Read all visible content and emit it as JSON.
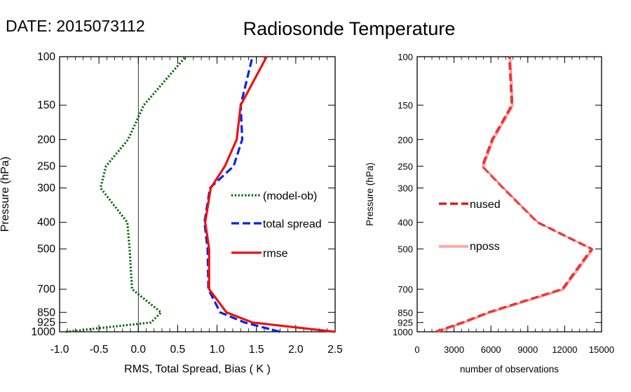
{
  "header": {
    "date_label": "DATE: 2015073112",
    "title": "Radiosonde Temperature"
  },
  "chart_data": [
    {
      "type": "line",
      "xlabel": "RMS, Total Spread, Bias ( K )",
      "ylabel": "Pressure (hPa)",
      "xlim": [
        -1.0,
        2.5
      ],
      "ylim": [
        1000,
        100
      ],
      "y_scale": "log",
      "x_ticks": [
        "-1.0",
        "-0.5",
        "0.0",
        "0.5",
        "1.0",
        "1.5",
        "2.0",
        "2.5"
      ],
      "y_ticks": [
        "100",
        "150",
        "200",
        "250",
        "300",
        "400",
        "500",
        "700",
        "850",
        "925",
        "1000"
      ],
      "zero_line": true,
      "legend_position": "right-center",
      "series": [
        {
          "name": "(model-ob)",
          "style": "dotted",
          "color": "#006400",
          "points": [
            [
              -0.92,
              1000
            ],
            [
              0.16,
              925
            ],
            [
              0.29,
              850
            ],
            [
              -0.08,
              700
            ],
            [
              -0.11,
              500
            ],
            [
              -0.14,
              400
            ],
            [
              -0.48,
              300
            ],
            [
              -0.41,
              250
            ],
            [
              -0.13,
              200
            ],
            [
              0.07,
              150
            ],
            [
              0.6,
              100
            ]
          ]
        },
        {
          "name": "total spread",
          "style": "dashed",
          "color": "#0022ee",
          "points": [
            [
              1.8,
              1000
            ],
            [
              1.35,
              925
            ],
            [
              1.04,
              850
            ],
            [
              0.89,
              700
            ],
            [
              0.88,
              500
            ],
            [
              0.84,
              400
            ],
            [
              0.91,
              300
            ],
            [
              1.21,
              250
            ],
            [
              1.32,
              200
            ],
            [
              1.3,
              150
            ],
            [
              1.45,
              100
            ]
          ]
        },
        {
          "name": "rmse",
          "style": "solid",
          "color": "#ee1111",
          "points": [
            [
              2.5,
              1000
            ],
            [
              1.45,
              925
            ],
            [
              1.12,
              850
            ],
            [
              0.9,
              700
            ],
            [
              0.9,
              500
            ],
            [
              0.85,
              400
            ],
            [
              0.92,
              300
            ],
            [
              1.1,
              250
            ],
            [
              1.25,
              200
            ],
            [
              1.3,
              150
            ],
            [
              1.63,
              100
            ]
          ]
        }
      ]
    },
    {
      "type": "line",
      "xlabel": "number of observations",
      "ylabel": "Pressure (hPa)",
      "xlim": [
        0,
        15000
      ],
      "ylim": [
        1000,
        100
      ],
      "y_scale": "log",
      "x_ticks": [
        "0",
        "3000",
        "6000",
        "9000",
        "12000",
        "15000"
      ],
      "y_ticks": [
        "100",
        "150",
        "200",
        "250",
        "300",
        "400",
        "500",
        "700",
        "850",
        "925",
        "1000"
      ],
      "legend_position": "left-center",
      "series": [
        {
          "name": "nused",
          "style": "dashed",
          "color": "#dd1111",
          "points": [
            [
              1500,
              1000
            ],
            [
              3700,
              925
            ],
            [
              5800,
              850
            ],
            [
              11800,
              700
            ],
            [
              14200,
              500
            ],
            [
              9800,
              400
            ],
            [
              7000,
              300
            ],
            [
              5300,
              250
            ],
            [
              6100,
              200
            ],
            [
              7700,
              150
            ],
            [
              7500,
              100
            ]
          ]
        },
        {
          "name": "nposs",
          "style": "double-thin",
          "color": "#ff5555",
          "points": [
            [
              1500,
              1000
            ],
            [
              3700,
              925
            ],
            [
              5800,
              850
            ],
            [
              11800,
              700
            ],
            [
              14200,
              500
            ],
            [
              9800,
              400
            ],
            [
              7000,
              300
            ],
            [
              5300,
              250
            ],
            [
              6100,
              200
            ],
            [
              7700,
              150
            ],
            [
              7500,
              100
            ]
          ]
        }
      ]
    }
  ]
}
